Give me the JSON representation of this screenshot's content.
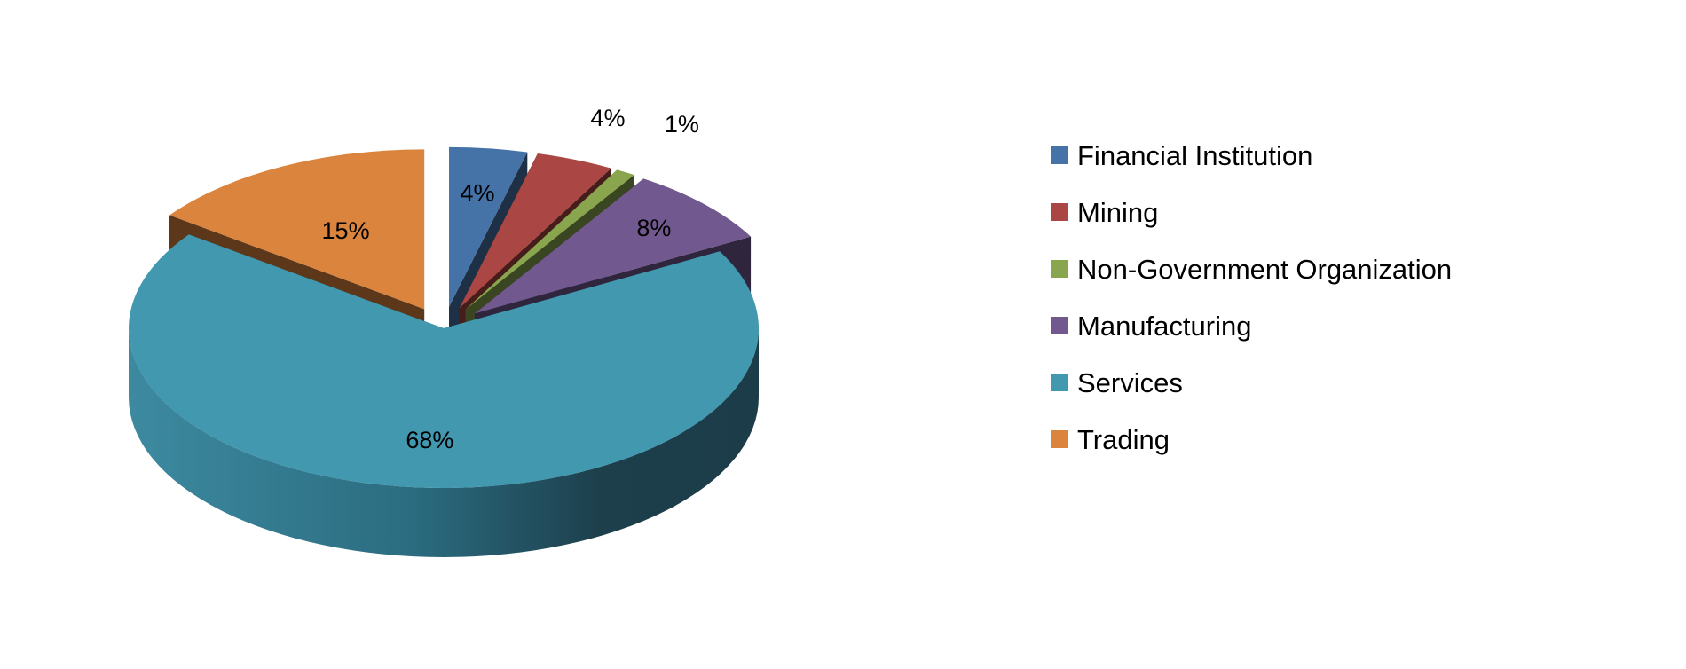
{
  "chart_data": {
    "type": "pie",
    "style": "3d-exploded",
    "title": "",
    "legend_position": "right",
    "slices": [
      {
        "name": "Financial Institution",
        "value": 4,
        "label": "4%",
        "color": "#4572A7"
      },
      {
        "name": "Mining",
        "value": 4,
        "label": "4%",
        "color": "#AA4643"
      },
      {
        "name": "Non-Government Organization",
        "value": 1,
        "label": "1%",
        "color": "#89A54E"
      },
      {
        "name": "Manufacturing",
        "value": 8,
        "label": "8%",
        "color": "#71588F"
      },
      {
        "name": "Services",
        "value": 68,
        "label": "68%",
        "color": "#4198AF"
      },
      {
        "name": "Trading",
        "value": 15,
        "label": "15%",
        "color": "#DB843D"
      }
    ]
  }
}
